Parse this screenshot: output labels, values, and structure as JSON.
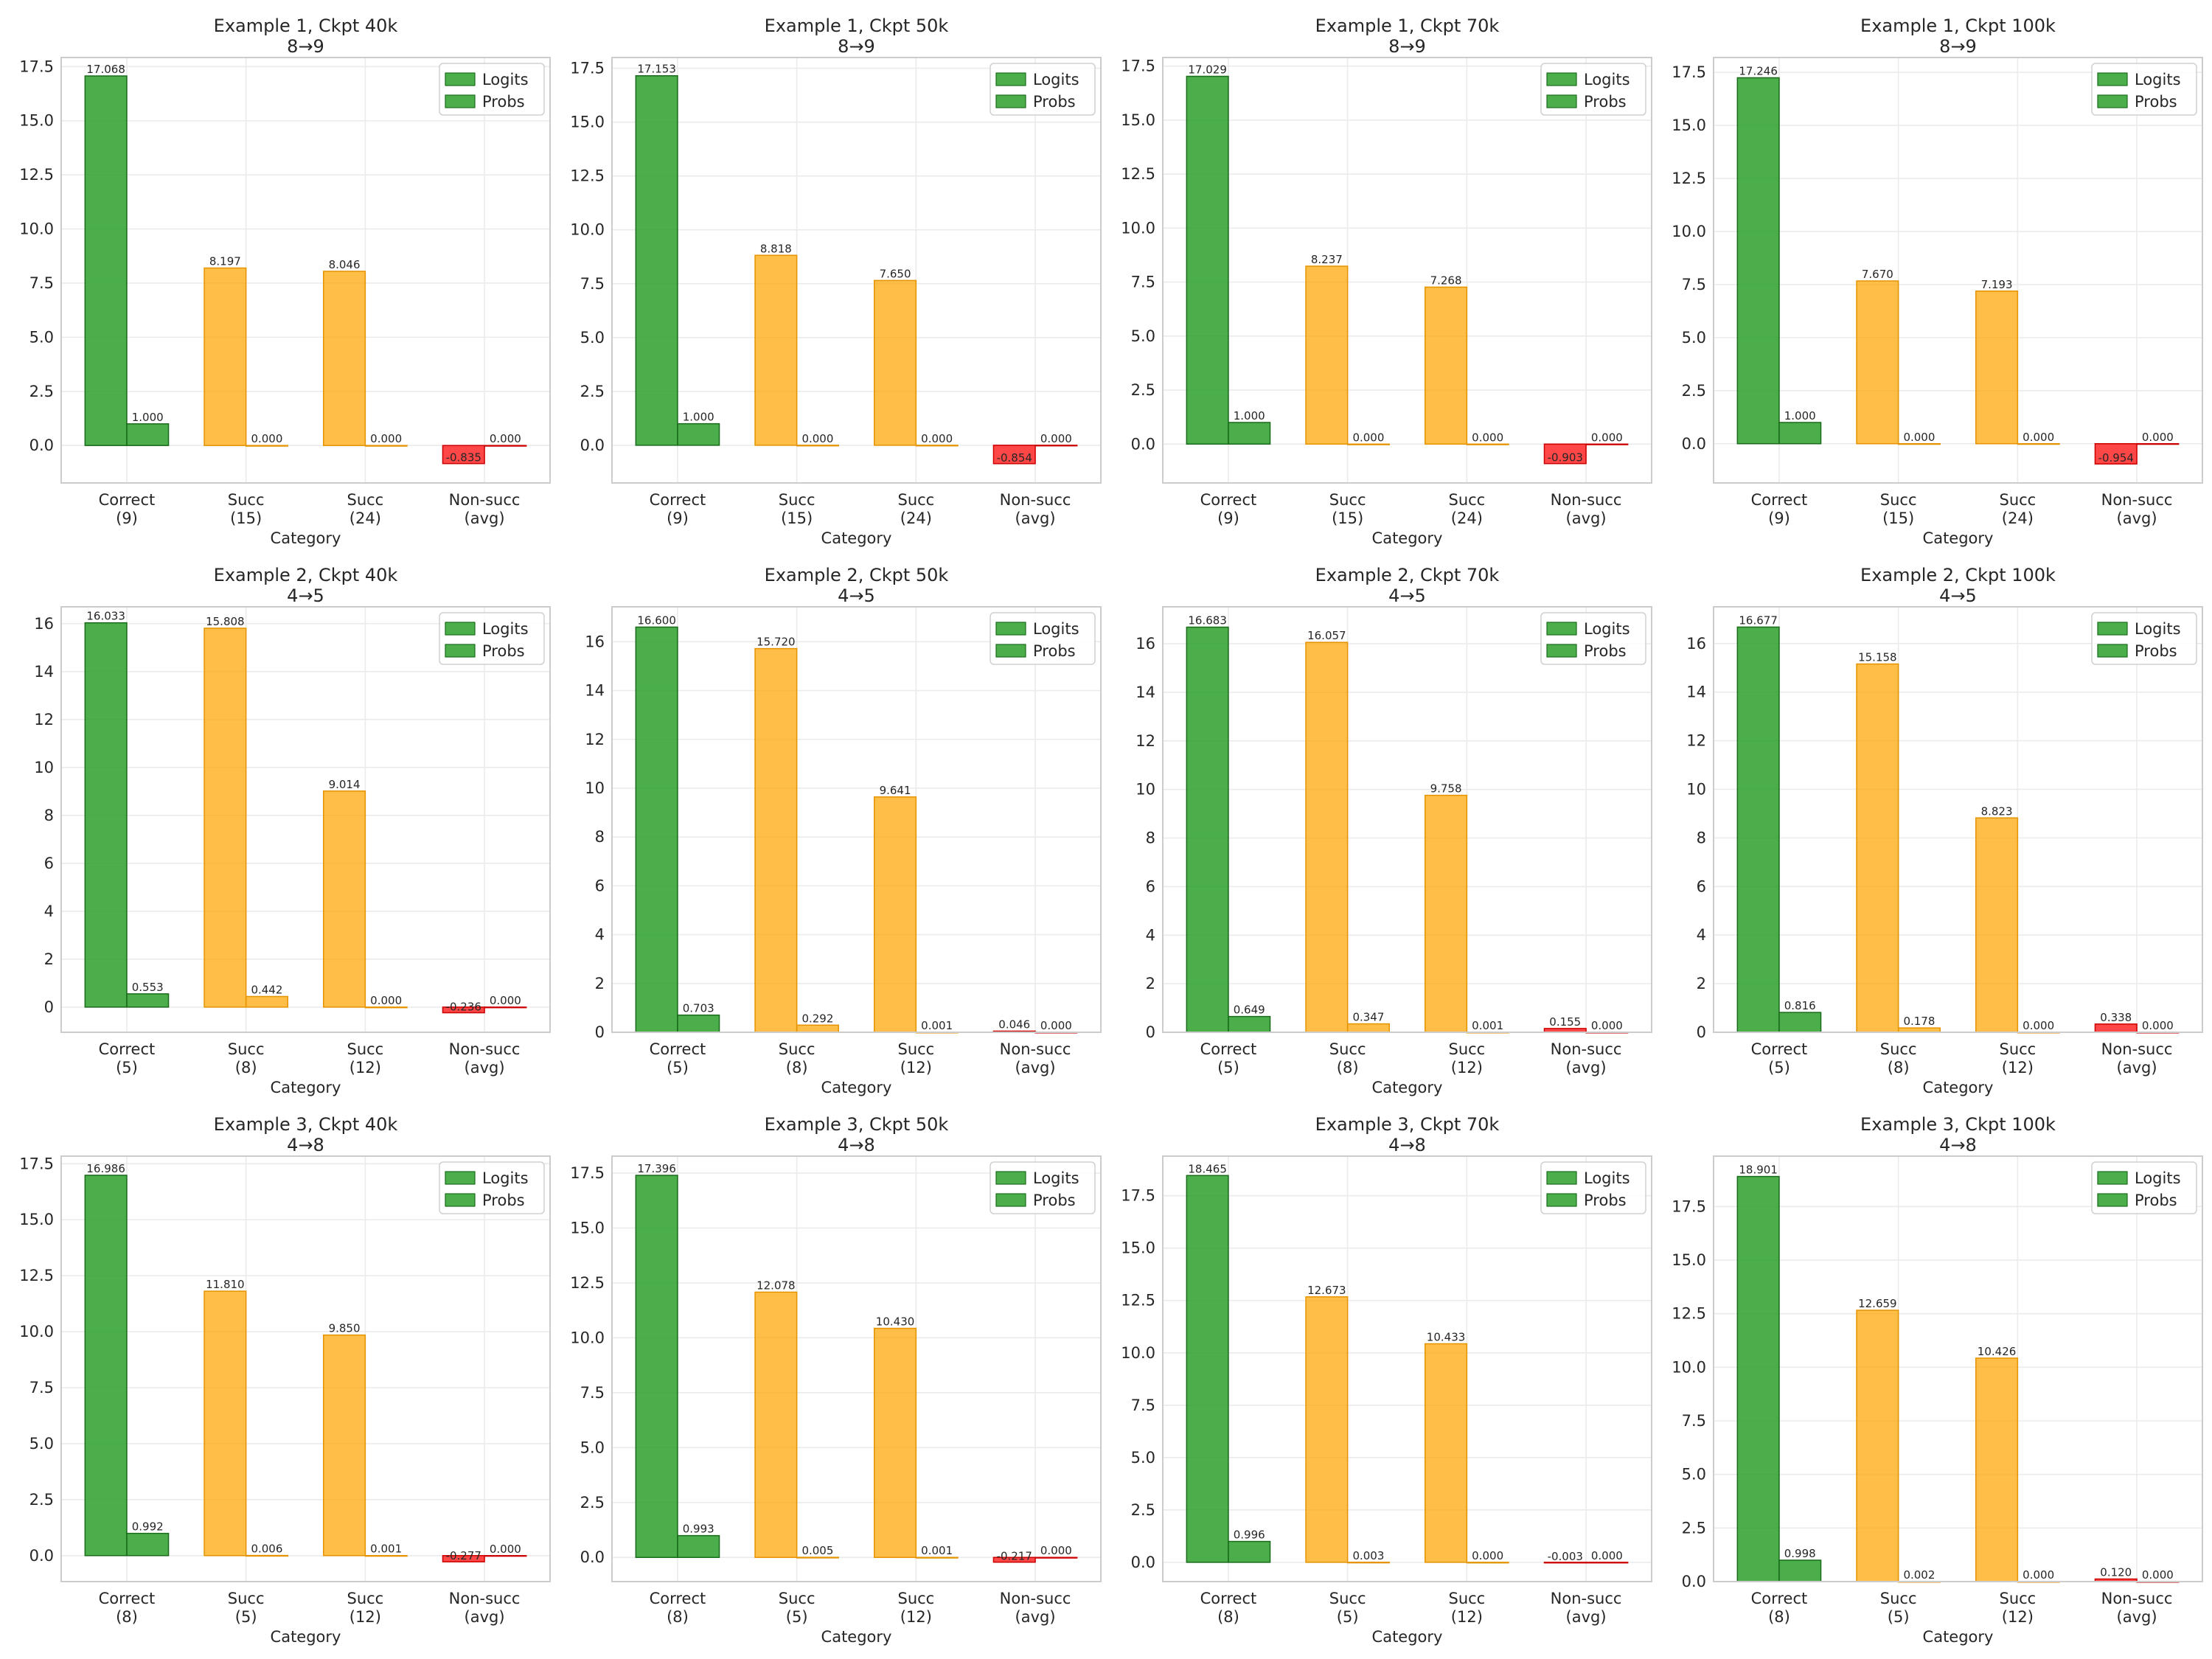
{
  "figure": {
    "legend_position": "upper right",
    "legend_entries": [
      "Logits",
      "Probs"
    ],
    "xlabel": "Category",
    "grid": true,
    "colors": {
      "correct": "#2ca02c",
      "succ": "#ffa500",
      "nonsucc": "#ff0000",
      "grid": "#ebebeb",
      "spine": "#cccccc"
    }
  },
  "chart_data": [
    {
      "type": "bar",
      "title": "Example 1, Ckpt 40k",
      "subtitle": "8→9",
      "xlabel": "Category",
      "ylabel": "",
      "categories": [
        "Correct\n(9)",
        "Succ\n(15)",
        "Succ\n(24)",
        "Non-succ\n(avg)"
      ],
      "ylim": [
        -1.73,
        17.92
      ],
      "yticks": [
        "0.0",
        "2.5",
        "5.0",
        "7.5",
        "10.0",
        "12.5",
        "15.0",
        "17.5"
      ],
      "ytick_values": [
        0,
        2.5,
        5,
        7.5,
        10,
        12.5,
        15,
        17.5
      ],
      "series": [
        {
          "name": "Logits",
          "values": [
            17.068,
            8.197,
            8.046,
            -0.835
          ],
          "labels": [
            "17.068",
            "8.197",
            "8.046",
            "-0.835"
          ]
        },
        {
          "name": "Probs",
          "values": [
            1.0,
            0.0,
            0.0,
            0.0
          ],
          "labels": [
            "1.000",
            "0.000",
            "0.000",
            "0.000"
          ]
        }
      ]
    },
    {
      "type": "bar",
      "title": "Example 1, Ckpt 50k",
      "subtitle": "8→9",
      "xlabel": "Category",
      "ylabel": "",
      "categories": [
        "Correct\n(9)",
        "Succ\n(15)",
        "Succ\n(24)",
        "Non-succ\n(avg)"
      ],
      "ylim": [
        -1.75,
        18.0
      ],
      "yticks": [
        "0.0",
        "2.5",
        "5.0",
        "7.5",
        "10.0",
        "12.5",
        "15.0",
        "17.5"
      ],
      "ytick_values": [
        0,
        2.5,
        5,
        7.5,
        10,
        12.5,
        15,
        17.5
      ],
      "series": [
        {
          "name": "Logits",
          "values": [
            17.153,
            8.818,
            7.65,
            -0.854
          ],
          "labels": [
            "17.153",
            "8.818",
            "7.650",
            "-0.854"
          ]
        },
        {
          "name": "Probs",
          "values": [
            1.0,
            0.0,
            0.0,
            0.0
          ],
          "labels": [
            "1.000",
            "0.000",
            "0.000",
            "0.000"
          ]
        }
      ]
    },
    {
      "type": "bar",
      "title": "Example 1, Ckpt 70k",
      "subtitle": "8→9",
      "xlabel": "Category",
      "ylabel": "",
      "categories": [
        "Correct\n(9)",
        "Succ\n(15)",
        "Succ\n(24)",
        "Non-succ\n(avg)"
      ],
      "ylim": [
        -1.8,
        17.9
      ],
      "yticks": [
        "0.0",
        "2.5",
        "5.0",
        "7.5",
        "10.0",
        "12.5",
        "15.0",
        "17.5"
      ],
      "ytick_values": [
        0,
        2.5,
        5,
        7.5,
        10,
        12.5,
        15,
        17.5
      ],
      "series": [
        {
          "name": "Logits",
          "values": [
            17.029,
            8.237,
            7.268,
            -0.903
          ],
          "labels": [
            "17.029",
            "8.237",
            "7.268",
            "-0.903"
          ]
        },
        {
          "name": "Probs",
          "values": [
            1.0,
            0.0,
            0.0,
            0.0
          ],
          "labels": [
            "1.000",
            "0.000",
            "0.000",
            "0.000"
          ]
        }
      ]
    },
    {
      "type": "bar",
      "title": "Example 1, Ckpt 100k",
      "subtitle": "8→9",
      "xlabel": "Category",
      "ylabel": "",
      "categories": [
        "Correct\n(9)",
        "Succ\n(15)",
        "Succ\n(24)",
        "Non-succ\n(avg)"
      ],
      "ylim": [
        -1.85,
        18.2
      ],
      "yticks": [
        "0.0",
        "2.5",
        "5.0",
        "7.5",
        "10.0",
        "12.5",
        "15.0",
        "17.5"
      ],
      "ytick_values": [
        0,
        2.5,
        5,
        7.5,
        10,
        12.5,
        15,
        17.5
      ],
      "series": [
        {
          "name": "Logits",
          "values": [
            17.246,
            7.67,
            7.193,
            -0.954
          ],
          "labels": [
            "17.246",
            "7.670",
            "7.193",
            "-0.954"
          ]
        },
        {
          "name": "Probs",
          "values": [
            1.0,
            0.0,
            0.0,
            0.0
          ],
          "labels": [
            "1.000",
            "0.000",
            "0.000",
            "0.000"
          ]
        }
      ]
    },
    {
      "type": "bar",
      "title": "Example 2, Ckpt 40k",
      "subtitle": "4→5",
      "xlabel": "Category",
      "ylabel": "",
      "categories": [
        "Correct\n(5)",
        "Succ\n(8)",
        "Succ\n(12)",
        "Non-succ\n(avg)"
      ],
      "ylim": [
        -1.05,
        16.7
      ],
      "yticks": [
        "0",
        "2",
        "4",
        "6",
        "8",
        "10",
        "12",
        "14",
        "16"
      ],
      "ytick_values": [
        0,
        2,
        4,
        6,
        8,
        10,
        12,
        14,
        16
      ],
      "series": [
        {
          "name": "Logits",
          "values": [
            16.033,
            15.808,
            9.014,
            -0.236
          ],
          "labels": [
            "16.033",
            "15.808",
            "9.014",
            "-0.236"
          ]
        },
        {
          "name": "Probs",
          "values": [
            0.553,
            0.442,
            0.0,
            0.0
          ],
          "labels": [
            "0.553",
            "0.442",
            "0.000",
            "0.000"
          ]
        }
      ]
    },
    {
      "type": "bar",
      "title": "Example 2, Ckpt 50k",
      "subtitle": "4→5",
      "xlabel": "Category",
      "ylabel": "",
      "categories": [
        "Correct\n(5)",
        "Succ\n(8)",
        "Succ\n(12)",
        "Non-succ\n(avg)"
      ],
      "ylim": [
        0,
        17.43
      ],
      "yticks": [
        "0",
        "2",
        "4",
        "6",
        "8",
        "10",
        "12",
        "14",
        "16"
      ],
      "ytick_values": [
        0,
        2,
        4,
        6,
        8,
        10,
        12,
        14,
        16
      ],
      "series": [
        {
          "name": "Logits",
          "values": [
            16.6,
            15.72,
            9.641,
            0.046
          ],
          "labels": [
            "16.600",
            "15.720",
            "9.641",
            "0.046"
          ]
        },
        {
          "name": "Probs",
          "values": [
            0.703,
            0.292,
            0.001,
            0.0
          ],
          "labels": [
            "0.703",
            "0.292",
            "0.001",
            "0.000"
          ]
        }
      ]
    },
    {
      "type": "bar",
      "title": "Example 2, Ckpt 70k",
      "subtitle": "4→5",
      "xlabel": "Category",
      "ylabel": "",
      "categories": [
        "Correct\n(5)",
        "Succ\n(8)",
        "Succ\n(12)",
        "Non-succ\n(avg)"
      ],
      "ylim": [
        0,
        17.52
      ],
      "yticks": [
        "0",
        "2",
        "4",
        "6",
        "8",
        "10",
        "12",
        "14",
        "16"
      ],
      "ytick_values": [
        0,
        2,
        4,
        6,
        8,
        10,
        12,
        14,
        16
      ],
      "series": [
        {
          "name": "Logits",
          "values": [
            16.683,
            16.057,
            9.758,
            0.155
          ],
          "labels": [
            "16.683",
            "16.057",
            "9.758",
            "0.155"
          ]
        },
        {
          "name": "Probs",
          "values": [
            0.649,
            0.347,
            0.001,
            0.0
          ],
          "labels": [
            "0.649",
            "0.347",
            "0.001",
            "0.000"
          ]
        }
      ]
    },
    {
      "type": "bar",
      "title": "Example 2, Ckpt 100k",
      "subtitle": "4→5",
      "xlabel": "Category",
      "ylabel": "",
      "categories": [
        "Correct\n(5)",
        "Succ\n(8)",
        "Succ\n(12)",
        "Non-succ\n(avg)"
      ],
      "ylim": [
        0,
        17.51
      ],
      "yticks": [
        "0",
        "2",
        "4",
        "6",
        "8",
        "10",
        "12",
        "14",
        "16"
      ],
      "ytick_values": [
        0,
        2,
        4,
        6,
        8,
        10,
        12,
        14,
        16
      ],
      "series": [
        {
          "name": "Logits",
          "values": [
            16.677,
            15.158,
            8.823,
            0.338
          ],
          "labels": [
            "16.677",
            "15.158",
            "8.823",
            "0.338"
          ]
        },
        {
          "name": "Probs",
          "values": [
            0.816,
            0.178,
            0.0,
            0.0
          ],
          "labels": [
            "0.816",
            "0.178",
            "0.000",
            "0.000"
          ]
        }
      ]
    },
    {
      "type": "bar",
      "title": "Example 3, Ckpt 40k",
      "subtitle": "4→8",
      "xlabel": "Category",
      "ylabel": "",
      "categories": [
        "Correct\n(8)",
        "Succ\n(5)",
        "Succ\n(12)",
        "Non-succ\n(avg)"
      ],
      "ylim": [
        -1.16,
        17.84
      ],
      "yticks": [
        "0.0",
        "2.5",
        "5.0",
        "7.5",
        "10.0",
        "12.5",
        "15.0",
        "17.5"
      ],
      "ytick_values": [
        0,
        2.5,
        5,
        7.5,
        10,
        12.5,
        15,
        17.5
      ],
      "series": [
        {
          "name": "Logits",
          "values": [
            16.986,
            11.81,
            9.85,
            -0.277
          ],
          "labels": [
            "16.986",
            "11.810",
            "9.850",
            "-0.277"
          ]
        },
        {
          "name": "Probs",
          "values": [
            0.992,
            0.006,
            0.001,
            0.0
          ],
          "labels": [
            "0.992",
            "0.006",
            "0.001",
            "0.000"
          ]
        }
      ]
    },
    {
      "type": "bar",
      "title": "Example 3, Ckpt 50k",
      "subtitle": "4→8",
      "xlabel": "Category",
      "ylabel": "",
      "categories": [
        "Correct\n(8)",
        "Succ\n(5)",
        "Succ\n(12)",
        "Non-succ\n(avg)"
      ],
      "ylim": [
        -1.1,
        18.27
      ],
      "yticks": [
        "0.0",
        "2.5",
        "5.0",
        "7.5",
        "10.0",
        "12.5",
        "15.0",
        "17.5"
      ],
      "ytick_values": [
        0,
        2.5,
        5,
        7.5,
        10,
        12.5,
        15,
        17.5
      ],
      "series": [
        {
          "name": "Logits",
          "values": [
            17.396,
            12.078,
            10.43,
            -0.217
          ],
          "labels": [
            "17.396",
            "12.078",
            "10.430",
            "-0.217"
          ]
        },
        {
          "name": "Probs",
          "values": [
            0.993,
            0.005,
            0.001,
            0.0
          ],
          "labels": [
            "0.993",
            "0.005",
            "0.001",
            "0.000"
          ]
        }
      ]
    },
    {
      "type": "bar",
      "title": "Example 3, Ckpt 70k",
      "subtitle": "4→8",
      "xlabel": "Category",
      "ylabel": "",
      "categories": [
        "Correct\n(8)",
        "Succ\n(5)",
        "Succ\n(12)",
        "Non-succ\n(avg)"
      ],
      "ylim": [
        -0.92,
        19.39
      ],
      "yticks": [
        "0.0",
        "2.5",
        "5.0",
        "7.5",
        "10.0",
        "12.5",
        "15.0",
        "17.5"
      ],
      "ytick_values": [
        0,
        2.5,
        5,
        7.5,
        10,
        12.5,
        15,
        17.5
      ],
      "series": [
        {
          "name": "Logits",
          "values": [
            18.465,
            12.673,
            10.433,
            -0.003
          ],
          "labels": [
            "18.465",
            "12.673",
            "10.433",
            "-0.003"
          ]
        },
        {
          "name": "Probs",
          "values": [
            0.996,
            0.003,
            0.0,
            0.0
          ],
          "labels": [
            "0.996",
            "0.003",
            "0.000",
            "0.000"
          ]
        }
      ]
    },
    {
      "type": "bar",
      "title": "Example 3, Ckpt 100k",
      "subtitle": "4→8",
      "xlabel": "Category",
      "ylabel": "",
      "categories": [
        "Correct\n(8)",
        "Succ\n(5)",
        "Succ\n(12)",
        "Non-succ\n(avg)"
      ],
      "ylim": [
        0,
        19.85
      ],
      "yticks": [
        "0.0",
        "2.5",
        "5.0",
        "7.5",
        "10.0",
        "12.5",
        "15.0",
        "17.5"
      ],
      "ytick_values": [
        0,
        2.5,
        5,
        7.5,
        10,
        12.5,
        15,
        17.5
      ],
      "series": [
        {
          "name": "Logits",
          "values": [
            18.901,
            12.659,
            10.426,
            0.12
          ],
          "labels": [
            "18.901",
            "12.659",
            "10.426",
            "0.120"
          ]
        },
        {
          "name": "Probs",
          "values": [
            0.998,
            0.002,
            0.0,
            0.0
          ],
          "labels": [
            "0.998",
            "0.002",
            "0.000",
            "0.000"
          ]
        }
      ]
    }
  ]
}
